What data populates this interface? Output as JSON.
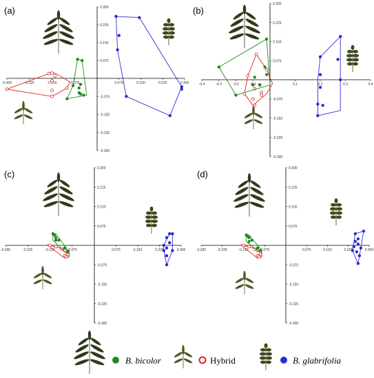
{
  "colors": {
    "bicolor": "#1f8a1f",
    "hybrid": "#e0201e",
    "glabrifolia": "#2b2bd6",
    "axis": "#000000",
    "leaf": "#2f3a1c",
    "leaf_small": "#4e5a26"
  },
  "legend": [
    {
      "label": "B. bicolor",
      "italic": true,
      "marker": "filled",
      "color_key": "bicolor",
      "icon": "long-leaflet-leaf-icon"
    },
    {
      "label": "Hybrid",
      "italic": false,
      "marker": "open",
      "color_key": "hybrid",
      "icon": "trifoliate-leaf-icon"
    },
    {
      "label": "B. glabrifolia",
      "italic": true,
      "marker": "filled",
      "color_key": "glabrifolia",
      "icon": "round-leaflet-leaf-icon"
    }
  ],
  "chart_data": [
    {
      "type": "scatter",
      "label": "(a)",
      "xlim": [
        -0.3,
        0.3
      ],
      "ylim": [
        -0.3,
        0.3
      ],
      "x_ticks": [
        "-0.300",
        "-0.225",
        "-0.150",
        "-0.075",
        "0.075",
        "0.150",
        "0.225",
        "0.300"
      ],
      "x_tick_values": [
        -0.3,
        -0.225,
        -0.15,
        -0.075,
        0.075,
        0.15,
        0.225,
        0.3
      ],
      "y_ticks": [
        "0.300",
        "0.225",
        "0.150",
        "0.075",
        "-0.075",
        "-0.150",
        "-0.225",
        "-0.300"
      ],
      "y_tick_values": [
        0.3,
        0.225,
        0.15,
        0.075,
        -0.075,
        -0.15,
        -0.225,
        -0.3
      ],
      "series": [
        {
          "group": "hybrid",
          "points": [
            [
              -0.3,
              -0.045
            ],
            [
              -0.16,
              0.02
            ],
            [
              -0.15,
              0.022
            ],
            [
              -0.14,
              0.01
            ],
            [
              -0.15,
              -0.05
            ],
            [
              -0.15,
              -0.075
            ],
            [
              -0.1,
              -0.04
            ],
            [
              -0.15,
              -0.01
            ]
          ],
          "hull": [
            [
              -0.3,
              -0.045
            ],
            [
              -0.16,
              0.02
            ],
            [
              -0.14,
              0.022
            ],
            [
              -0.09,
              -0.015
            ],
            [
              -0.1,
              -0.04
            ],
            [
              -0.15,
              -0.075
            ]
          ]
        },
        {
          "group": "bicolor",
          "points": [
            [
              -0.065,
              0.08
            ],
            [
              -0.05,
              0.075
            ],
            [
              -0.08,
              -0.03
            ],
            [
              -0.055,
              -0.065
            ],
            [
              -0.06,
              -0.04
            ],
            [
              -0.045,
              -0.07
            ],
            [
              -0.1,
              -0.085
            ],
            [
              -0.055,
              -0.025
            ],
            [
              -0.06,
              -0.06
            ]
          ],
          "hull": [
            [
              -0.065,
              0.08
            ],
            [
              -0.05,
              0.075
            ],
            [
              -0.035,
              -0.07
            ],
            [
              -0.1,
              -0.085
            ],
            [
              -0.08,
              -0.03
            ]
          ]
        },
        {
          "group": "glabrifolia",
          "points": [
            [
              0.065,
              0.26
            ],
            [
              0.075,
              0.18
            ],
            [
              0.145,
              0.255
            ],
            [
              0.07,
              0.12
            ],
            [
              0.29,
              -0.035
            ],
            [
              0.29,
              -0.045
            ],
            [
              0.1,
              -0.075
            ],
            [
              0.25,
              -0.155
            ]
          ],
          "hull": [
            [
              0.065,
              0.26
            ],
            [
              0.145,
              0.255
            ],
            [
              0.29,
              -0.035
            ],
            [
              0.25,
              -0.155
            ],
            [
              0.1,
              -0.075
            ],
            [
              0.07,
              0.12
            ]
          ]
        }
      ]
    },
    {
      "type": "scatter",
      "label": "(b)",
      "xlim": [
        -0.4,
        0.4
      ],
      "ylim": [
        -0.3,
        0.3
      ],
      "x_ticks": [
        "-0.4",
        "-0.3",
        "-0.2",
        "-0.1",
        "0.1",
        "0.2",
        "0.3",
        "0.4"
      ],
      "x_tick_values": [
        -0.4,
        -0.3,
        -0.2,
        -0.1,
        0.1,
        0.2,
        0.3,
        0.4
      ],
      "y_ticks": [
        "0.300",
        "0.225",
        "0.150",
        "0.075",
        "-0.075",
        "-0.150",
        "-0.225",
        "-0.300"
      ],
      "y_tick_values": [
        0.3,
        0.225,
        0.15,
        0.075,
        -0.075,
        -0.15,
        -0.225,
        -0.3
      ],
      "series": [
        {
          "group": "hybrid",
          "points": [
            [
              -0.08,
              0.1
            ],
            [
              -0.02,
              0.04
            ],
            [
              -0.13,
              0.015
            ],
            [
              -0.1,
              -0.02
            ],
            [
              -0.06,
              -0.02
            ],
            [
              -0.09,
              -0.035
            ],
            [
              -0.05,
              -0.05
            ],
            [
              -0.05,
              -0.06
            ],
            [
              -0.1,
              -0.075
            ],
            [
              -0.15,
              -0.055
            ],
            [
              -0.09,
              -0.1
            ]
          ],
          "hull": [
            [
              -0.08,
              0.1
            ],
            [
              -0.02,
              0.04
            ],
            [
              0.01,
              -0.015
            ],
            [
              -0.02,
              -0.055
            ],
            [
              -0.1,
              -0.1
            ],
            [
              -0.15,
              -0.055
            ],
            [
              -0.13,
              0.015
            ]
          ]
        },
        {
          "group": "bicolor",
          "points": [
            [
              -0.3,
              0.05
            ],
            [
              -0.2,
              -0.06
            ],
            [
              -0.02,
              0.16
            ],
            [
              -0.03,
              0.05
            ],
            [
              -0.09,
              0.01
            ],
            [
              -0.1,
              -0.02
            ],
            [
              -0.06,
              -0.02
            ],
            [
              -0.02,
              0.02
            ]
          ],
          "hull": [
            [
              -0.3,
              0.05
            ],
            [
              -0.02,
              0.16
            ],
            [
              0.0,
              -0.02
            ],
            [
              -0.2,
              -0.06
            ]
          ]
        },
        {
          "group": "glabrifolia",
          "points": [
            [
              0.28,
              0.17
            ],
            [
              0.2,
              0.09
            ],
            [
              0.27,
              0.08
            ],
            [
              0.2,
              0.02
            ],
            [
              0.2,
              -0.03
            ],
            [
              0.28,
              0.0
            ],
            [
              0.19,
              -0.095
            ],
            [
              0.21,
              -0.1
            ],
            [
              0.19,
              -0.14
            ]
          ],
          "hull": [
            [
              0.28,
              0.17
            ],
            [
              0.28,
              -0.12
            ],
            [
              0.19,
              -0.14
            ],
            [
              0.19,
              0.0
            ],
            [
              0.2,
              0.09
            ]
          ]
        }
      ]
    },
    {
      "type": "scatter",
      "label": "(c)",
      "xlim": [
        -0.3,
        0.3
      ],
      "ylim": [
        -0.3,
        0.3
      ],
      "x_ticks": [
        "-0.300",
        "-0.225",
        "-0.150",
        "-0.075",
        "0.075",
        "0.150",
        "0.225",
        "0.300"
      ],
      "x_tick_values": [
        -0.3,
        -0.225,
        -0.15,
        -0.075,
        0.075,
        0.15,
        0.225,
        0.3
      ],
      "y_ticks": [
        "0.300",
        "0.225",
        "0.150",
        "0.075",
        "-0.075",
        "-0.150",
        "-0.225",
        "-0.300"
      ],
      "y_tick_values": [
        0.3,
        0.225,
        0.15,
        0.075,
        -0.075,
        -0.15,
        -0.225,
        -0.3
      ],
      "series": [
        {
          "group": "hybrid",
          "points": [
            [
              -0.15,
              0.0
            ],
            [
              -0.13,
              -0.005
            ],
            [
              -0.11,
              -0.015
            ],
            [
              -0.1,
              -0.02
            ],
            [
              -0.09,
              -0.025
            ],
            [
              -0.09,
              -0.035
            ],
            [
              -0.1,
              -0.04
            ],
            [
              -0.095,
              -0.045
            ]
          ],
          "hull": [
            [
              -0.16,
              0.002
            ],
            [
              -0.085,
              -0.02
            ],
            [
              -0.085,
              -0.045
            ],
            [
              -0.1,
              -0.05
            ]
          ]
        },
        {
          "group": "bicolor",
          "points": [
            [
              -0.14,
              0.045
            ],
            [
              -0.135,
              0.04
            ],
            [
              -0.13,
              0.03
            ],
            [
              -0.13,
              0.02
            ],
            [
              -0.12,
              0.02
            ],
            [
              -0.1,
              -0.01
            ],
            [
              -0.09,
              -0.025
            ]
          ],
          "hull": [
            [
              -0.14,
              0.045
            ],
            [
              -0.13,
              0.045
            ],
            [
              -0.085,
              -0.025
            ],
            [
              -0.095,
              -0.03
            ],
            [
              -0.14,
              0.02
            ]
          ]
        },
        {
          "group": "glabrifolia",
          "points": [
            [
              0.26,
              0.045
            ],
            [
              0.27,
              0.045
            ],
            [
              0.25,
              0.03
            ],
            [
              0.26,
              0.01
            ],
            [
              0.24,
              0.0
            ],
            [
              0.25,
              -0.01
            ],
            [
              0.24,
              -0.02
            ],
            [
              0.27,
              -0.02
            ],
            [
              0.25,
              -0.04
            ],
            [
              0.25,
              -0.075
            ]
          ],
          "hull": [
            [
              0.26,
              0.045
            ],
            [
              0.27,
              0.045
            ],
            [
              0.27,
              -0.02
            ],
            [
              0.25,
              -0.075
            ],
            [
              0.24,
              -0.02
            ],
            [
              0.24,
              0.0
            ]
          ]
        }
      ]
    },
    {
      "type": "scatter",
      "label": "(d)",
      "xlim": [
        -0.3,
        0.3
      ],
      "ylim": [
        -0.3,
        0.3
      ],
      "x_ticks": [
        "-0.300",
        "-0.225",
        "-0.150",
        "-0.075",
        "0.075",
        "0.150",
        "0.225",
        "0.300"
      ],
      "x_tick_values": [
        -0.3,
        -0.225,
        -0.15,
        -0.075,
        0.075,
        0.15,
        0.225,
        0.3
      ],
      "y_ticks": [
        "0.300",
        "0.225",
        "0.150",
        "0.075",
        "-0.075",
        "-0.150",
        "-0.225",
        "-0.300"
      ],
      "y_tick_values": [
        0.3,
        0.225,
        0.15,
        0.075,
        -0.075,
        -0.15,
        -0.225,
        -0.3
      ],
      "series": [
        {
          "group": "hybrid",
          "points": [
            [
              -0.15,
              0.0
            ],
            [
              -0.13,
              -0.005
            ],
            [
              -0.11,
              -0.015
            ],
            [
              -0.1,
              -0.02
            ],
            [
              -0.09,
              -0.025
            ],
            [
              -0.09,
              -0.035
            ],
            [
              -0.1,
              -0.04
            ],
            [
              -0.095,
              -0.045
            ]
          ],
          "hull": [
            [
              -0.16,
              0.002
            ],
            [
              -0.085,
              -0.02
            ],
            [
              -0.085,
              -0.045
            ],
            [
              -0.1,
              -0.05
            ]
          ]
        },
        {
          "group": "bicolor",
          "points": [
            [
              -0.14,
              0.04
            ],
            [
              -0.135,
              0.035
            ],
            [
              -0.13,
              0.03
            ],
            [
              -0.12,
              0.02
            ],
            [
              -0.13,
              0.015
            ],
            [
              -0.1,
              -0.01
            ],
            [
              -0.09,
              -0.02
            ]
          ],
          "hull": [
            [
              -0.14,
              0.04
            ],
            [
              -0.13,
              0.04
            ],
            [
              -0.085,
              -0.02
            ],
            [
              -0.095,
              -0.025
            ],
            [
              -0.14,
              0.015
            ]
          ]
        },
        {
          "group": "glabrifolia",
          "points": [
            [
              0.28,
              0.055
            ],
            [
              0.25,
              0.045
            ],
            [
              0.26,
              0.025
            ],
            [
              0.25,
              0.015
            ],
            [
              0.26,
              0.005
            ],
            [
              0.245,
              -0.005
            ],
            [
              0.27,
              -0.01
            ],
            [
              0.255,
              -0.025
            ],
            [
              0.265,
              -0.04
            ],
            [
              0.26,
              -0.07
            ],
            [
              0.24,
              -0.02
            ]
          ],
          "hull": [
            [
              0.25,
              0.045
            ],
            [
              0.28,
              0.055
            ],
            [
              0.27,
              -0.01
            ],
            [
              0.26,
              -0.07
            ],
            [
              0.24,
              -0.02
            ]
          ]
        }
      ]
    }
  ]
}
